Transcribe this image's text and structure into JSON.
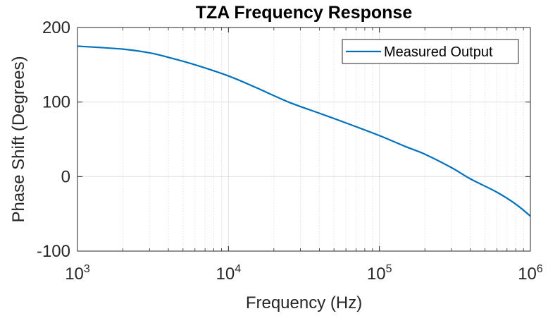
{
  "chart_data": {
    "type": "line",
    "title": "TZA Frequency Response",
    "xlabel": "Frequency (Hz)",
    "ylabel": "Phase Shift (Degrees)",
    "x_scale": "log",
    "xlim": [
      1000,
      1000000
    ],
    "ylim": [
      -100,
      200
    ],
    "x_ticks": [
      {
        "value": 1000,
        "base": "10",
        "exp": "3"
      },
      {
        "value": 10000,
        "base": "10",
        "exp": "4"
      },
      {
        "value": 100000,
        "base": "10",
        "exp": "5"
      },
      {
        "value": 1000000,
        "base": "10",
        "exp": "6"
      }
    ],
    "y_ticks": [
      {
        "value": -100,
        "label": "-100"
      },
      {
        "value": 0,
        "label": "0"
      },
      {
        "value": 100,
        "label": "100"
      },
      {
        "value": 200,
        "label": "200"
      }
    ],
    "grid": true,
    "minor_grid_x": true,
    "legend_position": "top-right",
    "series": [
      {
        "name": "Measured Output",
        "color": "#0072BD",
        "x": [
          1000,
          2000,
          3000,
          4000,
          6000,
          10000,
          15000,
          25000,
          40000,
          60000,
          100000,
          150000,
          200000,
          300000,
          400000,
          600000,
          800000,
          1000000
        ],
        "y": [
          175,
          171,
          166,
          160,
          150,
          135,
          120,
          100,
          85,
          72,
          55,
          40,
          30,
          12,
          -3,
          -21,
          -37,
          -53
        ]
      }
    ]
  }
}
